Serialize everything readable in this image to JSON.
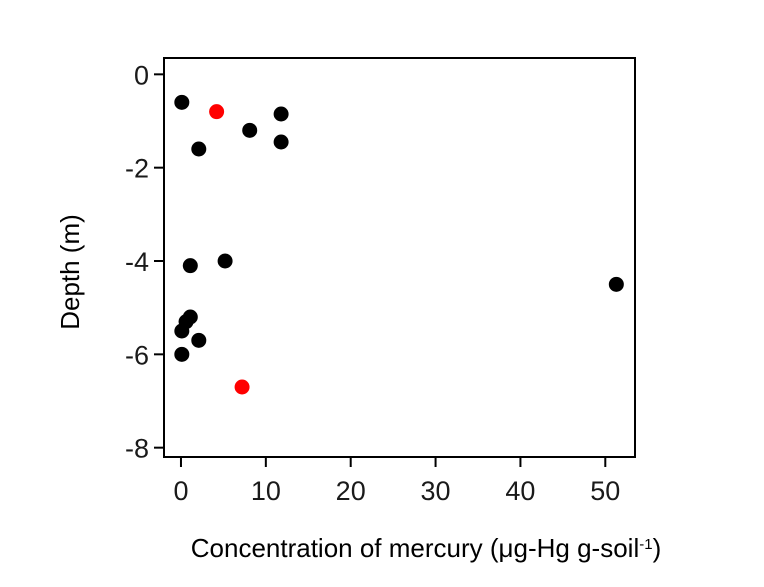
{
  "chart_data": {
    "type": "scatter",
    "title": "",
    "xlabel": "Concentration of mercury (μg-Hg g-soil",
    "xlabel_superscript": "-1",
    "xlabel_suffix": ")",
    "ylabel": "Depth (m)",
    "xlim": [
      -2,
      53.5
    ],
    "ylim": [
      -8.2,
      0.35
    ],
    "xticks": [
      0,
      10,
      20,
      30,
      40,
      50
    ],
    "yticks": [
      0,
      -2,
      -4,
      -6,
      -8
    ],
    "grid": false,
    "legend": "none",
    "colors": {
      "black_points": "#000000",
      "red_points": "#ff0000",
      "frame": "#000000"
    },
    "series": [
      {
        "color": "#000000",
        "points": [
          {
            "x": 0.1,
            "y": -0.6
          },
          {
            "x": 11.8,
            "y": -0.85
          },
          {
            "x": 8.1,
            "y": -1.2
          },
          {
            "x": 11.8,
            "y": -1.45
          },
          {
            "x": 2.1,
            "y": -1.6
          },
          {
            "x": 5.2,
            "y": -4.0
          },
          {
            "x": 1.1,
            "y": -4.1
          },
          {
            "x": 51.3,
            "y": -4.5
          },
          {
            "x": 1.1,
            "y": -5.2
          },
          {
            "x": 0.6,
            "y": -5.3
          },
          {
            "x": 0.1,
            "y": -5.5
          },
          {
            "x": 2.1,
            "y": -5.7
          },
          {
            "x": 0.1,
            "y": -6.0
          }
        ]
      },
      {
        "color": "#ff0000",
        "points": [
          {
            "x": 4.2,
            "y": -0.8
          },
          {
            "x": 7.2,
            "y": -6.7
          }
        ]
      }
    ]
  }
}
